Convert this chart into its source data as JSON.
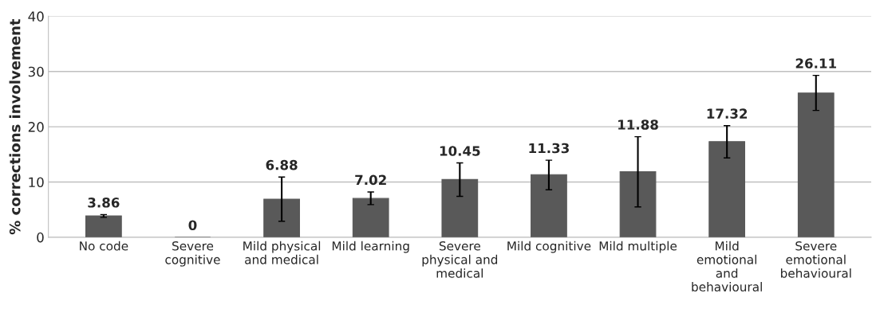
{
  "chart_data": {
    "type": "bar",
    "ylabel": "% corrections involvement",
    "categories": [
      "No code",
      "Severe\ncognitive",
      "Mild physical\nand medical",
      "Mild learning",
      "Severe\nphysical and\nmedical",
      "Mild cognitive",
      "Mild multiple",
      "Mild\nemotional\nand\nbehavioural",
      "Severe\nemotional\nbehavioural"
    ],
    "values": [
      3.86,
      0,
      6.88,
      7.02,
      10.45,
      11.33,
      11.88,
      17.32,
      26.11
    ],
    "errors": [
      [
        3.6,
        4.1
      ],
      null,
      [
        2.9,
        10.9
      ],
      [
        5.9,
        8.2
      ],
      [
        7.4,
        13.45
      ],
      [
        8.6,
        13.95
      ],
      [
        5.5,
        18.2
      ],
      [
        14.35,
        20.2
      ],
      [
        22.95,
        29.3
      ]
    ],
    "color": "#595959",
    "ylim": [
      0,
      40
    ],
    "yticks": [
      0,
      10,
      20,
      30,
      40
    ],
    "grid": "y",
    "data_labels": true
  }
}
